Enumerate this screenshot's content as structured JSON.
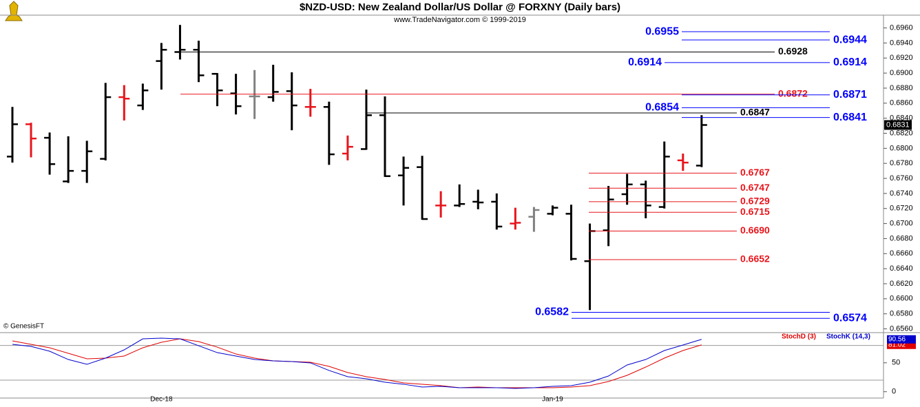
{
  "header": {
    "title": "$NZD-USD:  New Zealand Dollar/US Dollar @ FORXNY  (Daily bars)",
    "subtitle": "www.TradeNavigator.com © 1999-2019",
    "copyright": "© GenesisFT"
  },
  "chart_data": [
    {
      "type": "ohlc",
      "categories": [
        null,
        null,
        null,
        null,
        null,
        null,
        null,
        null,
        "Dec-18",
        null,
        null,
        null,
        null,
        null,
        null,
        null,
        null,
        null,
        null,
        null,
        null,
        null,
        null,
        null,
        null,
        null,
        null,
        null,
        null,
        "Jan-19",
        null,
        null,
        null,
        null,
        null,
        null,
        null,
        null
      ],
      "open": [
        0.6789,
        0.6832,
        0.6814,
        0.6756,
        0.677,
        0.6786,
        0.6868,
        0.6857,
        0.6916,
        0.6928,
        0.6931,
        0.6899,
        0.6873,
        0.6869,
        0.6868,
        0.6876,
        0.6855,
        0.6855,
        0.6793,
        0.6799,
        0.6844,
        0.6764,
        0.6775,
        0.6724,
        0.6724,
        0.6729,
        0.6729,
        0.67,
        0.6709,
        0.6713,
        0.6713,
        0.665,
        0.6691,
        0.6739,
        0.6752,
        0.6722,
        0.6784,
        0.6777
      ],
      "high": [
        0.6855,
        0.6834,
        0.6821,
        0.6816,
        0.681,
        0.6887,
        0.6884,
        0.6886,
        0.694,
        0.6964,
        0.6943,
        0.69,
        0.6899,
        0.6904,
        0.6911,
        0.6901,
        0.6879,
        0.6862,
        0.6817,
        0.6878,
        0.6869,
        0.6789,
        0.679,
        0.6743,
        0.6752,
        0.6745,
        0.674,
        0.6721,
        0.6722,
        0.6724,
        0.6725,
        0.67,
        0.675,
        0.6766,
        0.6757,
        0.6809,
        0.6793,
        0.6844
      ],
      "low": [
        0.6781,
        0.6788,
        0.6765,
        0.6754,
        0.6754,
        0.6784,
        0.6837,
        0.6851,
        0.6878,
        0.6918,
        0.6888,
        0.6856,
        0.6845,
        0.6839,
        0.6862,
        0.6824,
        0.6842,
        0.6778,
        0.6784,
        0.6798,
        0.6762,
        0.6724,
        0.6705,
        0.6708,
        0.6722,
        0.6719,
        0.6692,
        0.6692,
        0.6689,
        0.6711,
        0.6651,
        0.6585,
        0.667,
        0.6725,
        0.6707,
        0.672,
        0.677,
        0.6775
      ],
      "close": [
        0.6832,
        0.6813,
        0.6779,
        0.677,
        0.6796,
        0.6868,
        0.6866,
        0.6877,
        0.6931,
        0.6931,
        0.6897,
        0.6877,
        0.6856,
        0.6869,
        0.6875,
        0.6857,
        0.6855,
        0.6792,
        0.6802,
        0.6844,
        0.6763,
        0.6774,
        0.6706,
        0.6724,
        0.6726,
        0.6728,
        0.6696,
        0.6701,
        0.6718,
        0.6721,
        0.6653,
        0.669,
        0.6732,
        0.6752,
        0.6724,
        0.6789,
        0.6781,
        0.6831
      ],
      "bar_colors": [
        "#000000",
        "#e8141b",
        "#000000",
        "#000000",
        "#000000",
        "#000000",
        "#e8141b",
        "#000000",
        "#000000",
        "#000000",
        "#000000",
        "#000000",
        "#000000",
        "#808080",
        "#000000",
        "#000000",
        "#e8141b",
        "#000000",
        "#e8141b",
        "#000000",
        "#000000",
        "#000000",
        "#000000",
        "#e8141b",
        "#000000",
        "#000000",
        "#000000",
        "#e8141b",
        "#808080",
        "#000000",
        "#000000",
        "#000000",
        "#000000",
        "#000000",
        "#000000",
        "#000000",
        "#e8141b",
        "#000000"
      ],
      "ylim": [
        0.6555,
        0.6977
      ],
      "yticks": [
        {
          "value": 0.656,
          "label": "0.6560"
        },
        {
          "value": 0.658,
          "label": "0.6580"
        },
        {
          "value": 0.66,
          "label": "0.6600"
        },
        {
          "value": 0.662,
          "label": "0.6620"
        },
        {
          "value": 0.664,
          "label": "0.6640"
        },
        {
          "value": 0.666,
          "label": "0.6660"
        },
        {
          "value": 0.668,
          "label": "0.6680"
        },
        {
          "value": 0.67,
          "label": "0.6700"
        },
        {
          "value": 0.672,
          "label": "0.6720"
        },
        {
          "value": 0.674,
          "label": "0.6740"
        },
        {
          "value": 0.676,
          "label": "0.6760"
        },
        {
          "value": 0.678,
          "label": "0.6780"
        },
        {
          "value": 0.68,
          "label": "0.6800"
        },
        {
          "value": 0.682,
          "label": "0.6820"
        },
        {
          "value": 0.684,
          "label": "0.6840"
        },
        {
          "value": 0.686,
          "label": "0.6860"
        },
        {
          "value": 0.688,
          "label": "0.6880"
        },
        {
          "value": 0.69,
          "label": "0.6900"
        },
        {
          "value": 0.692,
          "label": "0.6920"
        },
        {
          "value": 0.694,
          "label": "0.6940"
        },
        {
          "value": 0.696,
          "label": "0.6960"
        }
      ],
      "levels": [
        {
          "value": 0.6955,
          "color": "#0000ff"
        },
        {
          "value": 0.6944,
          "color": "#0000ff"
        },
        {
          "value": 0.6928,
          "color": "#000000"
        },
        {
          "value": 0.6914,
          "color": "#0000ff"
        },
        {
          "value": 0.6872,
          "color": "#e8141b"
        },
        {
          "value": 0.6871,
          "color": "#0000ff"
        },
        {
          "value": 0.6854,
          "color": "#0000ff"
        },
        {
          "value": 0.6847,
          "color": "#000000"
        },
        {
          "value": 0.6841,
          "color": "#0000ff"
        },
        {
          "value": 0.6767,
          "color": "#e8141b"
        },
        {
          "value": 0.6747,
          "color": "#e8141b"
        },
        {
          "value": 0.6729,
          "color": "#e8141b"
        },
        {
          "value": 0.6715,
          "color": "#e8141b"
        },
        {
          "value": 0.669,
          "label": "0.6690",
          "color": "#e8141b"
        },
        {
          "value": 0.6652,
          "color": "#e8141b"
        },
        {
          "value": 0.6582,
          "color": "#0000ff"
        },
        {
          "value": 0.6574,
          "color": "#0000ff"
        }
      ]
    },
    {
      "type": "line",
      "series": [
        {
          "name": "StochD (3)",
          "color": "#e00000",
          "values": [
            87.9,
            81.9,
            76.0,
            66.4,
            56.9,
            58.1,
            61.7,
            76.0,
            85.5,
            91.4,
            86.7,
            77.1,
            65.2,
            58.1,
            53.3,
            52.1,
            51.0,
            43.8,
            33.1,
            26.0,
            21.2,
            15.2,
            12.9,
            10.5,
            6.9,
            8.1,
            6.9,
            6.9,
            6.9,
            6.9,
            8.1,
            10.5,
            17.6,
            28.3,
            42.6,
            58.1,
            71.2,
            81.02
          ]
        },
        {
          "name": "StochK (14,3)",
          "color": "#0000cc",
          "values": [
            81.9,
            78.3,
            70.0,
            55.7,
            47.4,
            58.1,
            72.4,
            91.4,
            92.6,
            91.4,
            79.5,
            67.6,
            61.7,
            55.7,
            53.3,
            52.1,
            49.8,
            36.7,
            26.0,
            22.4,
            16.4,
            12.9,
            8.1,
            9.3,
            6.9,
            6.9,
            6.9,
            5.7,
            6.9,
            9.3,
            10.5,
            16.4,
            27.1,
            46.2,
            55.7,
            71.2,
            80.7,
            90.56
          ]
        }
      ],
      "ylim": [
        -11,
        101
      ],
      "yticks": [
        0,
        50
      ],
      "reference_lines": [
        80,
        20
      ]
    }
  ]
}
